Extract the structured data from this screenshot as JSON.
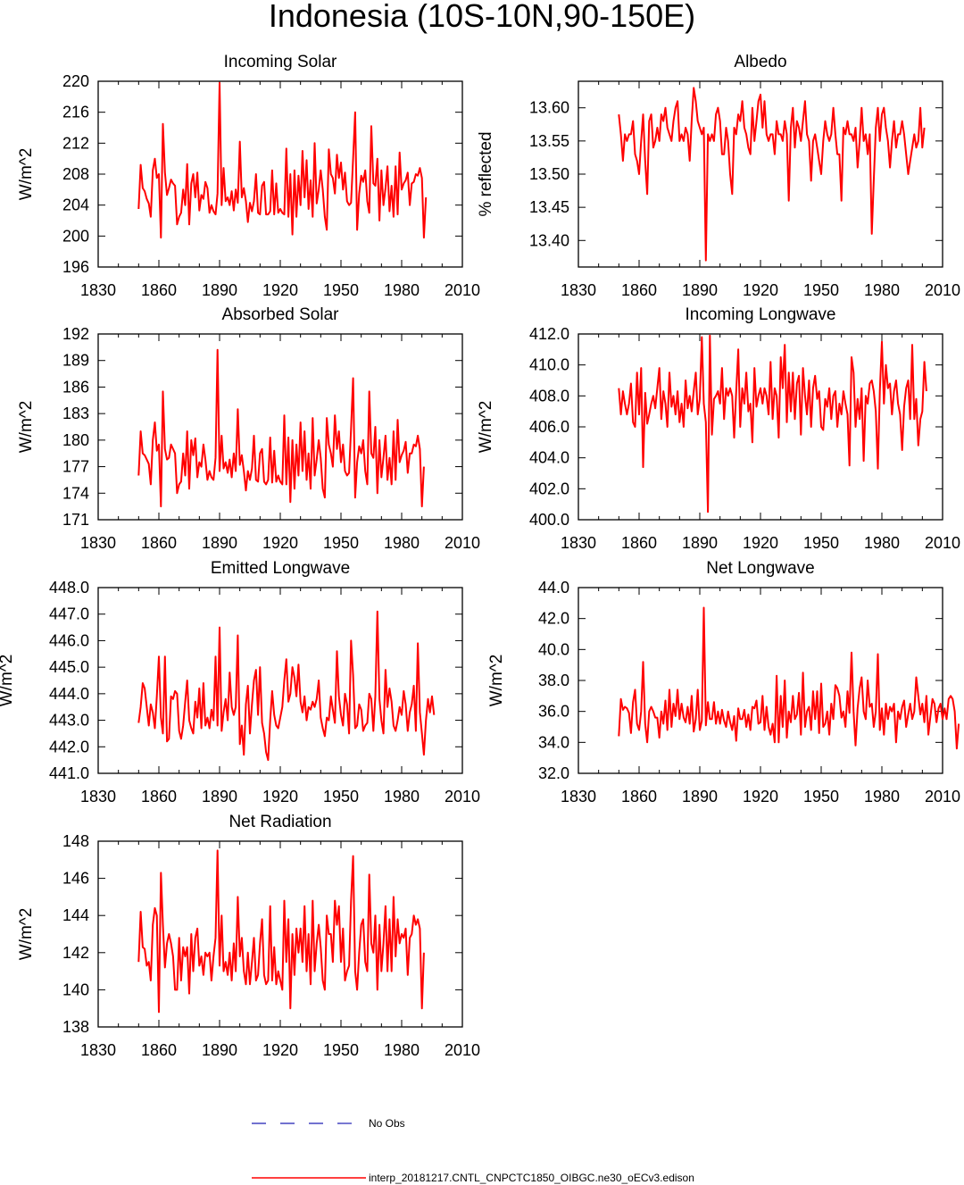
{
  "page": {
    "title": "Indonesia (10S-10N,90-150E)"
  },
  "legend": {
    "obs_label": "No Obs",
    "obs_color": "#1f1fb4",
    "model_label": "interp_20181217.CNTL_CNPCTC1850_OIBGC.ne30_oECv3.edison",
    "model_color": "#ff0000"
  },
  "chart_data": [
    {
      "id": "incoming-solar",
      "type": "line",
      "title": "Incoming Solar",
      "ylabel": "W/m^2",
      "xlim": [
        1830,
        2010
      ],
      "xticks": [
        1830,
        1860,
        1890,
        1920,
        1950,
        1980,
        2010
      ],
      "ylim": [
        196,
        220
      ],
      "yticks": [
        196,
        200,
        204,
        208,
        212,
        216,
        220
      ],
      "ytick_decimals": 0,
      "x_start": 1850,
      "values": [
        203.5,
        209.2,
        206.2,
        205.8,
        204.8,
        204.2,
        202.5,
        208.5,
        210.0,
        207.5,
        208.0,
        199.8,
        214.5,
        208.2,
        205.3,
        206.2,
        207.3,
        206.8,
        206.5,
        201.5,
        202.5,
        203.0,
        206.0,
        204.0,
        209.3,
        201.5,
        206.8,
        208.0,
        205.0,
        208.2,
        203.3,
        205.3,
        204.8,
        207.0,
        206.2,
        203.0,
        204.0,
        203.2,
        202.8,
        205.5,
        219.8,
        204.0,
        208.8,
        204.5,
        205.0,
        204.0,
        205.8,
        203.3,
        206.0,
        204.3,
        212.2,
        205.0,
        206.2,
        204.5,
        201.8,
        204.3,
        203.2,
        204.5,
        208.0,
        203.0,
        202.8,
        206.5,
        207.0,
        202.8,
        202.8,
        203.2,
        208.5,
        202.8,
        206.8,
        203.0,
        203.5,
        203.0,
        202.8,
        211.3,
        202.5,
        208.0,
        200.2,
        208.5,
        202.5,
        207.8,
        204.0,
        211.0,
        205.0,
        209.8,
        203.5,
        207.2,
        202.5,
        212.0,
        204.2,
        206.0,
        208.5,
        206.0,
        202.5,
        200.8,
        211.2,
        208.0,
        207.5,
        205.5,
        210.5,
        207.5,
        209.5,
        206.0,
        208.2,
        204.5,
        204.0,
        204.3,
        210.0,
        216.0,
        200.8,
        205.5,
        207.8,
        207.0,
        208.5,
        204.5,
        203.0,
        214.2,
        206.8,
        206.5,
        210.0,
        202.0,
        208.5,
        204.0,
        206.2,
        209.0,
        203.2,
        206.5,
        202.5,
        209.0,
        202.8,
        210.8,
        206.0,
        206.8,
        207.2,
        208.2,
        204.0,
        206.8,
        207.0,
        208.0,
        207.8,
        208.8,
        207.5,
        199.8,
        205.0
      ]
    },
    {
      "id": "albedo",
      "type": "line",
      "title": "Albedo",
      "ylabel": "% reflected",
      "xlim": [
        1830,
        2010
      ],
      "xticks": [
        1830,
        1860,
        1890,
        1920,
        1950,
        1980,
        2010
      ],
      "ylim": [
        13.36,
        13.64
      ],
      "yticks": [
        13.4,
        13.45,
        13.5,
        13.55,
        13.6
      ],
      "ytick_decimals": 2,
      "x_start": 1850,
      "values": [
        13.59,
        13.56,
        13.52,
        13.56,
        13.55,
        13.56,
        13.56,
        13.58,
        13.53,
        13.52,
        13.5,
        13.55,
        13.59,
        13.52,
        13.47,
        13.58,
        13.59,
        13.54,
        13.55,
        13.57,
        13.55,
        13.59,
        13.58,
        13.6,
        13.57,
        13.56,
        13.55,
        13.58,
        13.6,
        13.61,
        13.55,
        13.56,
        13.55,
        13.57,
        13.56,
        13.52,
        13.58,
        13.63,
        13.61,
        13.58,
        13.57,
        13.56,
        13.57,
        13.37,
        13.56,
        13.55,
        13.56,
        13.55,
        13.59,
        13.6,
        13.58,
        13.53,
        13.53,
        13.57,
        13.55,
        13.5,
        13.47,
        13.57,
        13.56,
        13.59,
        13.58,
        13.61,
        13.57,
        13.56,
        13.54,
        13.53,
        13.6,
        13.55,
        13.58,
        13.61,
        13.62,
        13.57,
        13.61,
        13.56,
        13.55,
        13.56,
        13.56,
        13.53,
        13.58,
        13.56,
        13.56,
        13.55,
        13.58,
        13.56,
        13.46,
        13.57,
        13.6,
        13.54,
        13.58,
        13.57,
        13.55,
        13.58,
        13.61,
        13.56,
        13.55,
        13.49,
        13.55,
        13.56,
        13.54,
        13.52,
        13.5,
        13.55,
        13.58,
        13.56,
        13.55,
        13.56,
        13.6,
        13.56,
        13.53,
        13.53,
        13.46,
        13.57,
        13.56,
        13.58,
        13.56,
        13.56,
        13.55,
        13.57,
        13.51,
        13.55,
        13.6,
        13.55,
        13.56,
        13.53,
        13.56,
        13.41,
        13.49,
        13.57,
        13.6,
        13.55,
        13.59,
        13.6,
        13.57,
        13.55,
        13.51,
        13.55,
        13.58,
        13.54,
        13.56,
        13.56,
        13.58,
        13.56,
        13.53,
        13.5,
        13.52,
        13.54,
        13.56,
        13.54,
        13.55,
        13.6,
        13.54,
        13.57
      ]
    },
    {
      "id": "absorbed-solar",
      "type": "line",
      "title": "Absorbed Solar",
      "ylabel": "W/m^2",
      "xlim": [
        1830,
        2010
      ],
      "xticks": [
        1830,
        1860,
        1890,
        1920,
        1950,
        1980,
        2010
      ],
      "ylim": [
        171,
        192
      ],
      "yticks": [
        171,
        174,
        177,
        180,
        183,
        186,
        189,
        192
      ],
      "ytick_decimals": 0,
      "x_start": 1850,
      "values": [
        176.0,
        181.0,
        178.5,
        178.3,
        177.8,
        177.3,
        175.0,
        180.0,
        182.0,
        178.8,
        179.5,
        172.5,
        185.5,
        179.0,
        177.8,
        178.0,
        179.5,
        179.0,
        178.5,
        174.0,
        175.0,
        175.3,
        178.5,
        176.0,
        181.0,
        174.5,
        180.0,
        178.3,
        180.2,
        175.8,
        177.5,
        177.0,
        179.5,
        177.8,
        175.5,
        176.5,
        175.8,
        175.5,
        178.0,
        190.2,
        176.5,
        180.5,
        176.8,
        177.5,
        176.3,
        177.8,
        175.8,
        178.5,
        176.5,
        183.5,
        177.2,
        178.3,
        176.5,
        174.3,
        176.5,
        175.5,
        176.8,
        180.5,
        175.5,
        175.3,
        178.5,
        179.0,
        175.3,
        175.0,
        175.5,
        180.3,
        175.2,
        178.8,
        175.3,
        176.0,
        175.3,
        175.0,
        182.8,
        175.0,
        180.3,
        173.0,
        180.0,
        174.5,
        179.5,
        176.0,
        182.0,
        176.5,
        181.0,
        175.5,
        178.5,
        174.5,
        182.5,
        176.0,
        177.8,
        180.0,
        178.0,
        174.5,
        173.5,
        182.5,
        179.5,
        178.5,
        177.0,
        182.8,
        179.0,
        181.0,
        177.5,
        179.5,
        176.5,
        176.0,
        176.3,
        181.3,
        187.0,
        173.5,
        177.5,
        179.3,
        178.5,
        180.0,
        176.5,
        175.0,
        185.5,
        178.5,
        178.0,
        181.5,
        174.0,
        180.0,
        175.8,
        178.0,
        180.5,
        175.5,
        178.0,
        175.0,
        181.0,
        175.5,
        182.3,
        177.5,
        178.3,
        178.8,
        179.8,
        176.3,
        178.5,
        178.5,
        179.5,
        179.3,
        180.5,
        179.0,
        172.5,
        177.0
      ]
    },
    {
      "id": "incoming-longwave",
      "type": "line",
      "title": "Incoming Longwave",
      "ylabel": "W/m^2",
      "xlim": [
        1830,
        2010
      ],
      "xticks": [
        1830,
        1860,
        1890,
        1920,
        1950,
        1980,
        2010
      ],
      "ylim": [
        400.0,
        412.0
      ],
      "yticks": [
        400.0,
        402.0,
        404.0,
        406.0,
        408.0,
        410.0,
        412.0
      ],
      "ytick_decimals": 1,
      "x_start": 1850,
      "values": [
        408.5,
        406.8,
        408.3,
        407.5,
        406.8,
        407.5,
        408.8,
        406.3,
        406.0,
        409.5,
        406.8,
        409.8,
        403.4,
        408.2,
        406.2,
        406.8,
        407.5,
        408.0,
        407.2,
        408.5,
        409.8,
        406.5,
        408.3,
        407.5,
        406.0,
        409.5,
        407.3,
        408.0,
        406.8,
        408.3,
        406.3,
        407.5,
        406.0,
        409.0,
        407.2,
        408.0,
        407.0,
        408.3,
        409.5,
        406.8,
        407.8,
        411.8,
        407.5,
        406.3,
        400.5,
        411.9,
        405.5,
        407.8,
        408.0,
        408.3,
        407.5,
        409.8,
        406.5,
        408.5,
        408.0,
        408.5,
        408.0,
        405.3,
        408.3,
        411.0,
        406.0,
        408.5,
        407.5,
        409.5,
        407.0,
        407.5,
        405.0,
        409.8,
        407.3,
        408.0,
        408.5,
        407.5,
        408.5,
        408.0,
        406.8,
        410.2,
        406.5,
        408.5,
        408.0,
        405.3,
        410.5,
        408.5,
        411.3,
        406.3,
        409.5,
        407.0,
        409.5,
        406.5,
        408.8,
        409.3,
        405.5,
        409.8,
        408.0,
        406.8,
        409.0,
        406.0,
        408.5,
        409.3,
        407.8,
        408.3,
        406.0,
        405.8,
        407.8,
        407.3,
        408.5,
        406.5,
        408.0,
        408.3,
        406.0,
        407.5,
        406.8,
        408.3,
        407.5,
        406.8,
        403.5,
        410.5,
        409.5,
        406.0,
        407.8,
        406.5,
        408.5,
        403.8,
        408.0,
        407.5,
        408.8,
        409.0,
        408.3,
        407.0,
        403.3,
        408.3,
        411.5,
        407.5,
        410.0,
        408.5,
        408.8,
        406.8,
        408.3,
        409.0,
        407.5,
        406.8,
        404.5,
        407.3,
        408.5,
        409.0,
        406.5,
        411.3,
        406.5,
        407.8,
        404.8,
        406.5,
        407.0,
        410.2,
        408.3
      ]
    },
    {
      "id": "emitted-longwave",
      "type": "line",
      "title": "Emitted Longwave",
      "ylabel": "W/m^2",
      "xlim": [
        1830,
        2010
      ],
      "xticks": [
        1830,
        1860,
        1890,
        1920,
        1950,
        1980,
        2010
      ],
      "ylim": [
        441.0,
        448.0
      ],
      "yticks": [
        441.0,
        442.0,
        443.0,
        444.0,
        445.0,
        446.0,
        447.0,
        448.0
      ],
      "ytick_decimals": 1,
      "x_start": 1850,
      "values": [
        442.9,
        443.5,
        444.4,
        444.2,
        443.5,
        442.8,
        443.6,
        443.3,
        442.7,
        443.9,
        445.4,
        443.1,
        442.5,
        445.4,
        442.2,
        442.3,
        443.9,
        443.8,
        444.1,
        444.0,
        442.6,
        442.3,
        442.8,
        443.7,
        444.5,
        443.0,
        442.7,
        442.5,
        443.7,
        443.1,
        444.2,
        442.7,
        444.4,
        442.8,
        443.1,
        442.7,
        443.4,
        443.0,
        445.4,
        442.8,
        446.5,
        442.6,
        443.3,
        443.8,
        443.0,
        444.8,
        443.5,
        443.2,
        443.5,
        446.2,
        442.1,
        442.8,
        441.7,
        443.6,
        444.3,
        442.5,
        443.6,
        444.5,
        444.9,
        443.2,
        445.0,
        442.9,
        442.5,
        441.8,
        441.5,
        443.0,
        444.1,
        443.2,
        442.8,
        442.7,
        443.1,
        443.5,
        444.5,
        445.3,
        443.7,
        444.0,
        445.0,
        444.6,
        443.9,
        445.1,
        443.7,
        443.3,
        443.9,
        443.0,
        443.5,
        443.4,
        443.7,
        443.5,
        443.8,
        444.5,
        443.1,
        442.7,
        442.4,
        443.1,
        443.0,
        443.9,
        443.4,
        442.9,
        445.6,
        443.9,
        443.2,
        442.8,
        444.0,
        443.6,
        442.5,
        446.0,
        444.7,
        442.7,
        442.8,
        443.6,
        443.4,
        442.6,
        442.8,
        442.9,
        444.0,
        443.8,
        442.6,
        443.9,
        447.1,
        443.8,
        443.0,
        442.5,
        444.9,
        443.5,
        444.2,
        443.7,
        442.8,
        442.6,
        443.0,
        443.5,
        443.2,
        444.1,
        443.6,
        442.6,
        443.3,
        443.6,
        444.3,
        442.6,
        445.9,
        443.3,
        442.5,
        441.7,
        443.0,
        443.8,
        443.3,
        443.9,
        443.2
      ]
    },
    {
      "id": "net-longwave",
      "type": "line",
      "title": "Net Longwave",
      "ylabel": "W/m^2",
      "xlim": [
        1830,
        2010
      ],
      "xticks": [
        1830,
        1860,
        1890,
        1920,
        1950,
        1980,
        2010
      ],
      "ylim": [
        32.0,
        44.0
      ],
      "yticks": [
        32.0,
        34.0,
        36.0,
        38.0,
        40.0,
        42.0,
        44.0
      ],
      "ytick_decimals": 1,
      "x_start": 1850,
      "values": [
        34.4,
        36.8,
        36.1,
        36.3,
        36.2,
        35.9,
        34.6,
        36.6,
        37.4,
        35.2,
        34.8,
        36.0,
        39.2,
        35.2,
        34.0,
        36.0,
        36.3,
        36.0,
        35.6,
        35.6,
        34.3,
        36.0,
        35.2,
        36.7,
        34.8,
        37.4,
        35.0,
        36.5,
        35.7,
        37.4,
        35.5,
        36.5,
        35.6,
        35.3,
        36.3,
        35.2,
        37.0,
        34.7,
        35.5,
        37.4,
        34.8,
        35.4,
        42.7,
        35.1,
        36.6,
        35.5,
        35.5,
        36.6,
        35.2,
        36.0,
        35.2,
        36.1,
        35.4,
        35.0,
        36.0,
        35.3,
        34.8,
        35.7,
        34.1,
        36.2,
        35.5,
        35.5,
        36.1,
        35.0,
        35.8,
        34.8,
        36.3,
        36.2,
        36.7,
        35.2,
        35.3,
        37.0,
        34.8,
        36.3,
        35.0,
        34.5,
        35.2,
        34.0,
        38.3,
        34.0,
        37.0,
        35.0,
        38.0,
        34.3,
        36.0,
        35.3,
        37.0,
        35.5,
        35.8,
        37.2,
        34.5,
        38.5,
        35.0,
        36.0,
        36.3,
        34.8,
        37.3,
        35.5,
        37.3,
        34.6,
        37.8,
        35.0,
        35.2,
        36.0,
        34.5,
        36.5,
        35.5,
        37.7,
        37.5,
        37.0,
        35.6,
        36.0,
        35.0,
        37.3,
        35.9,
        39.8,
        36.0,
        33.8,
        36.2,
        37.5,
        38.2,
        36.0,
        35.5,
        38.0,
        36.3,
        36.5,
        35.0,
        36.0,
        39.7,
        34.8,
        36.2,
        34.5,
        36.5,
        35.5,
        36.3,
        36.0,
        36.5,
        34.0,
        36.0,
        35.5,
        36.3,
        36.7,
        35.0,
        35.8,
        36.5,
        35.5,
        36.0,
        38.2,
        37.0,
        35.8,
        36.5,
        35.3,
        37.0,
        34.5,
        35.7,
        36.8,
        36.5,
        35.3,
        36.2,
        36.5,
        35.5,
        36.2,
        35.5,
        36.8,
        37.0,
        36.8,
        36.0,
        33.6,
        35.2
      ]
    },
    {
      "id": "net-radiation",
      "type": "line",
      "title": "Net Radiation",
      "ylabel": "W/m^2",
      "xlim": [
        1830,
        2010
      ],
      "xticks": [
        1830,
        1860,
        1890,
        1920,
        1950,
        1980,
        2010
      ],
      "ylim": [
        138,
        148
      ],
      "yticks": [
        138,
        140,
        142,
        144,
        146,
        148
      ],
      "ytick_decimals": 0,
      "x_start": 1850,
      "values": [
        141.5,
        144.2,
        142.3,
        142.2,
        141.3,
        141.5,
        140.5,
        143.5,
        144.4,
        144.0,
        138.8,
        146.3,
        143.5,
        141.2,
        142.5,
        143.0,
        142.5,
        141.8,
        140.0,
        140.0,
        142.8,
        140.5,
        142.3,
        141.8,
        142.3,
        139.8,
        143.0,
        141.0,
        142.8,
        143.3,
        141.3,
        141.8,
        140.8,
        142.0,
        141.8,
        142.0,
        140.5,
        141.8,
        142.8,
        147.5,
        141.3,
        144.0,
        141.0,
        141.5,
        140.8,
        142.0,
        140.5,
        142.5,
        141.0,
        145.0,
        141.8,
        142.8,
        141.0,
        140.3,
        142.0,
        140.3,
        141.5,
        142.8,
        140.5,
        140.8,
        142.5,
        143.8,
        140.8,
        140.3,
        140.5,
        144.5,
        140.5,
        142.3,
        140.3,
        141.0,
        140.5,
        140.0,
        144.8,
        141.5,
        143.8,
        139.0,
        143.0,
        140.8,
        143.3,
        142.0,
        143.3,
        141.5,
        144.5,
        141.0,
        143.0,
        140.3,
        144.8,
        141.0,
        142.5,
        143.5,
        142.3,
        140.5,
        140.0,
        144.0,
        143.0,
        143.0,
        141.5,
        144.8,
        143.5,
        144.5,
        141.5,
        143.3,
        140.5,
        141.0,
        141.3,
        144.8,
        147.2,
        141.0,
        140.0,
        142.0,
        143.5,
        143.8,
        141.5,
        141.0,
        146.2,
        142.5,
        142.0,
        144.0,
        140.0,
        143.5,
        141.0,
        142.5,
        144.5,
        141.0,
        143.8,
        141.0,
        145.0,
        141.8,
        143.8,
        142.5,
        143.0,
        142.8,
        143.3,
        140.8,
        142.8,
        143.0,
        144.0,
        143.5,
        143.8,
        143.3,
        139.0,
        142.0
      ]
    }
  ]
}
